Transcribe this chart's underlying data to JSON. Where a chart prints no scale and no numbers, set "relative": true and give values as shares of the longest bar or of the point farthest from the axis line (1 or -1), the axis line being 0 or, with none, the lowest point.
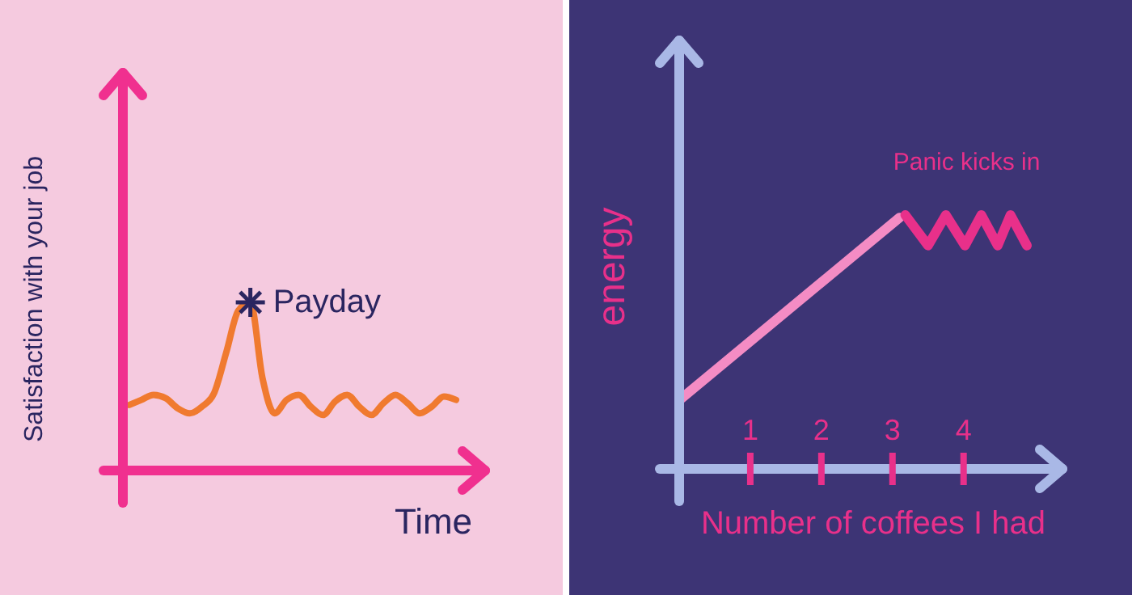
{
  "chart_data": [
    {
      "type": "line",
      "relative": true,
      "tick_labels": false,
      "xlabel": "Time",
      "ylabel": "Satisfaction with your job",
      "annotations": [
        "Payday"
      ],
      "categories": [
        null,
        null,
        null,
        null,
        null,
        null,
        null,
        null,
        null,
        null,
        null,
        null,
        null,
        null,
        null,
        null,
        null,
        null,
        null,
        null,
        null,
        null,
        null,
        null,
        null,
        null,
        null,
        null
      ],
      "series": [
        {
          "color": "#f07a2f",
          "values": [
            0.39,
            0.42,
            0.45,
            0.43,
            0.37,
            0.34,
            0.38,
            0.46,
            0.7,
            0.95,
            1.0,
            0.55,
            0.34,
            0.42,
            0.45,
            0.38,
            0.33,
            0.41,
            0.45,
            0.38,
            0.33,
            0.4,
            0.45,
            0.4,
            0.34,
            0.38,
            0.44,
            0.42
          ]
        }
      ]
    },
    {
      "type": "line",
      "relative": true,
      "tick_labels": "x",
      "xlabel": "Number of coffees I had",
      "ylabel": "energy",
      "annotations": [
        "Panic kicks in"
      ],
      "xlim": [
        0,
        5.3
      ],
      "xticks": [
        1,
        2,
        3,
        4
      ],
      "series": [
        {
          "color": "#f48cc4",
          "x": [
            0,
            3.1
          ],
          "values": [
            0.27,
            0.99
          ]
        },
        {
          "color": "#e8308a",
          "x": [
            3.18,
            3.5,
            3.75,
            4.02,
            4.25,
            4.48,
            4.66,
            4.89
          ],
          "values": [
            1,
            0.88,
            1,
            0.88,
            1,
            0.88,
            1,
            0.88
          ]
        }
      ]
    }
  ]
}
